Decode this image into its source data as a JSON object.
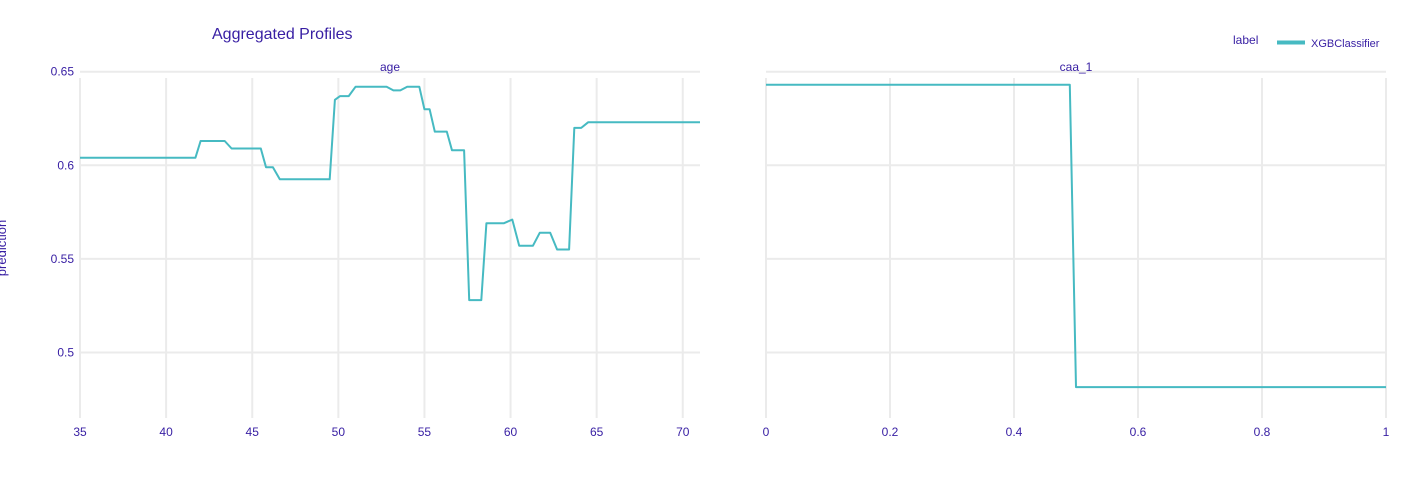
{
  "colors": {
    "line": "#46bac2",
    "text": "#371ea3",
    "grid": "#ebebeb",
    "background": "#ffffff"
  },
  "chart_data": {
    "type": "line",
    "title": "Aggregated Profiles",
    "ylabel": "prediction",
    "legend": {
      "title": "label",
      "placement": "top-right",
      "entries": [
        "XGBClassifier"
      ]
    },
    "grid": true,
    "ylim": [
      0.465,
      0.66
    ],
    "yticks": [
      0.5,
      0.55,
      0.6,
      0.65
    ],
    "ytick_labels": [
      "0.5",
      "0.55",
      "0.6",
      "0.65"
    ],
    "panels": [
      {
        "subtitle": "age",
        "xlim": [
          35,
          71
        ],
        "xticks": [
          35,
          40,
          45,
          50,
          55,
          60,
          65,
          70
        ],
        "xtick_labels": [
          "35",
          "40",
          "45",
          "50",
          "55",
          "60",
          "65",
          "70"
        ],
        "series": [
          {
            "name": "XGBClassifier",
            "x": [
              35,
              41.7,
              42.0,
              43.4,
              43.8,
              45.5,
              45.8,
              46.2,
              46.6,
              49.5,
              49.8,
              50.1,
              50.6,
              51.0,
              52.8,
              53.2,
              53.6,
              54.0,
              54.7,
              55.0,
              55.3,
              55.6,
              56.3,
              56.6,
              57.3,
              57.6,
              58.3,
              58.6,
              59.6,
              60.1,
              60.5,
              61.3,
              61.7,
              62.3,
              62.7,
              63.4,
              63.7,
              64.1,
              64.5,
              71
            ],
            "y": [
              0.604,
              0.604,
              0.613,
              0.613,
              0.609,
              0.609,
              0.599,
              0.599,
              0.5925,
              0.5925,
              0.635,
              0.637,
              0.637,
              0.642,
              0.642,
              0.64,
              0.64,
              0.642,
              0.642,
              0.63,
              0.63,
              0.618,
              0.618,
              0.608,
              0.608,
              0.528,
              0.528,
              0.569,
              0.569,
              0.571,
              0.557,
              0.557,
              0.564,
              0.564,
              0.555,
              0.555,
              0.62,
              0.62,
              0.623,
              0.623
            ]
          }
        ]
      },
      {
        "subtitle": "caa_1",
        "xlim": [
          0,
          1
        ],
        "xticks": [
          0,
          0.2,
          0.4,
          0.6,
          0.8,
          1
        ],
        "xtick_labels": [
          "0",
          "0.2",
          "0.4",
          "0.6",
          "0.8",
          "1"
        ],
        "series": [
          {
            "name": "XGBClassifier",
            "x": [
              0,
              0.49,
              0.5,
              1
            ],
            "y": [
              0.643,
              0.643,
              0.4815,
              0.4815
            ]
          }
        ]
      }
    ]
  }
}
